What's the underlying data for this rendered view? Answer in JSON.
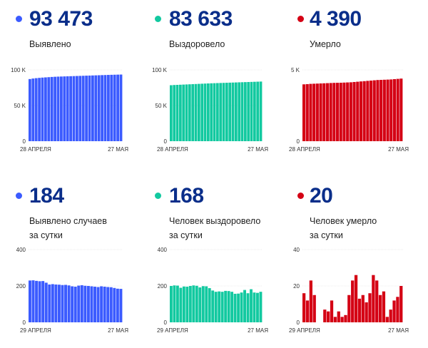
{
  "panels": [
    {
      "value": "93 473",
      "label": "Выявлено",
      "label2": "",
      "color": "#3b5bff"
    },
    {
      "value": "83 633",
      "label": "Выздоровело",
      "label2": "",
      "color": "#12c9a0"
    },
    {
      "value": "4 390",
      "label": "Умерло",
      "label2": "",
      "color": "#d40014"
    },
    {
      "value": "184",
      "label": "Выявлено случаев",
      "label2": "за сутки",
      "color": "#3b5bff"
    },
    {
      "value": "168",
      "label": "Человек выздоровело",
      "label2": "за сутки",
      "color": "#12c9a0"
    },
    {
      "value": "20",
      "label": "Человек умерло",
      "label2": "за сутки",
      "color": "#d40014"
    }
  ],
  "chart_data": [
    {
      "type": "bar",
      "title": "Выявлено",
      "x_start": "28 АПРЕЛЯ",
      "x_end": "27 МАЯ",
      "yticks": [
        "0",
        "50 K",
        "100 K"
      ],
      "ylim": [
        0,
        100000
      ],
      "color": "#3b5bff",
      "values": [
        87147,
        87900,
        88400,
        88800,
        89200,
        89500,
        89800,
        90100,
        90350,
        90550,
        90700,
        90850,
        91000,
        91150,
        91300,
        91450,
        91600,
        91750,
        91900,
        92050,
        92200,
        92350,
        92500,
        92650,
        92800,
        92950,
        93100,
        93230,
        93350,
        93473
      ]
    },
    {
      "type": "bar",
      "title": "Выздоровело",
      "x_start": "28 АПРЕЛЯ",
      "x_end": "27 МАЯ",
      "yticks": [
        "0",
        "50 K",
        "100 K"
      ],
      "ylim": [
        0,
        100000
      ],
      "color": "#12c9a0",
      "values": [
        78500,
        78800,
        79000,
        79200,
        79400,
        79600,
        79800,
        80000,
        80200,
        80400,
        80600,
        80800,
        81000,
        81200,
        81350,
        81500,
        81650,
        81800,
        81950,
        82100,
        82250,
        82400,
        82550,
        82700,
        82850,
        83000,
        83150,
        83300,
        83465,
        83633
      ]
    },
    {
      "type": "bar",
      "title": "Умерло",
      "x_start": "28 АПРЕЛЯ",
      "x_end": "27 МАЯ",
      "yticks": [
        "0",
        "5 K"
      ],
      "ylim": [
        0,
        5000
      ],
      "color": "#d40014",
      "values": [
        3986,
        4000,
        4020,
        4030,
        4040,
        4050,
        4060,
        4070,
        4080,
        4090,
        4095,
        4100,
        4110,
        4120,
        4130,
        4150,
        4170,
        4190,
        4210,
        4230,
        4250,
        4270,
        4290,
        4300,
        4310,
        4320,
        4330,
        4350,
        4370,
        4390
      ]
    },
    {
      "type": "bar",
      "title": "Выявлено случаев за сутки",
      "x_start": "29 АПРЕЛЯ",
      "x_end": "27 МАЯ",
      "yticks": [
        "0",
        "200",
        "400"
      ],
      "ylim": [
        0,
        400
      ],
      "color": "#3b5bff",
      "values": [
        230,
        231,
        228,
        226,
        227,
        218,
        208,
        210,
        208,
        207,
        205,
        206,
        203,
        198,
        196,
        202,
        204,
        201,
        200,
        198,
        196,
        194,
        198,
        196,
        194,
        193,
        189,
        185,
        184
      ]
    },
    {
      "type": "bar",
      "title": "Человек выздоровело за сутки",
      "x_start": "29 АПРЕЛЯ",
      "x_end": "27 МАЯ",
      "yticks": [
        "0",
        "200",
        "400"
      ],
      "ylim": [
        0,
        400
      ],
      "color": "#12c9a0",
      "values": [
        200,
        203,
        202,
        190,
        197,
        196,
        200,
        203,
        201,
        192,
        199,
        198,
        188,
        175,
        168,
        170,
        168,
        173,
        172,
        168,
        157,
        158,
        164,
        178,
        160,
        182,
        164,
        162,
        168
      ]
    },
    {
      "type": "bar",
      "title": "Человек умерло за сутки",
      "x_start": "29 АПРЕЛЯ",
      "x_end": "27 МАЯ",
      "yticks": [
        "0",
        "20",
        "40"
      ],
      "ylim": [
        0,
        40
      ],
      "color": "#d40014",
      "values": [
        16,
        12,
        23,
        15,
        0,
        0,
        7,
        6,
        12,
        3,
        6,
        3,
        4,
        15,
        23,
        26,
        13,
        15,
        11,
        16,
        26,
        23,
        15,
        17,
        3,
        7,
        12,
        14,
        20
      ]
    }
  ]
}
